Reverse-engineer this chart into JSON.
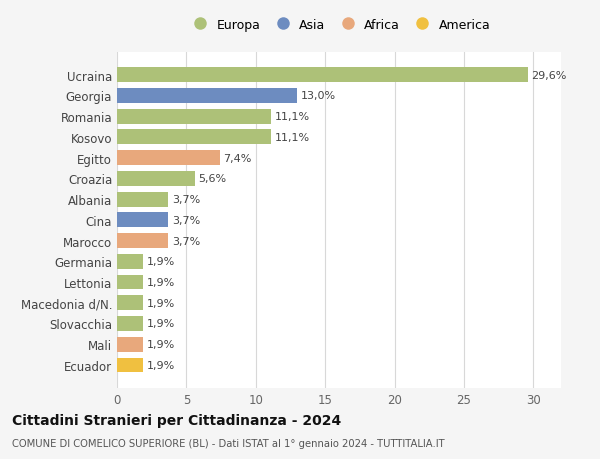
{
  "countries": [
    "Ucraina",
    "Georgia",
    "Romania",
    "Kosovo",
    "Egitto",
    "Croazia",
    "Albania",
    "Cina",
    "Marocco",
    "Germania",
    "Lettonia",
    "Macedonia d/N.",
    "Slovacchia",
    "Mali",
    "Ecuador"
  ],
  "values": [
    29.6,
    13.0,
    11.1,
    11.1,
    7.4,
    5.6,
    3.7,
    3.7,
    3.7,
    1.9,
    1.9,
    1.9,
    1.9,
    1.9,
    1.9
  ],
  "labels": [
    "29,6%",
    "13,0%",
    "11,1%",
    "11,1%",
    "7,4%",
    "5,6%",
    "3,7%",
    "3,7%",
    "3,7%",
    "1,9%",
    "1,9%",
    "1,9%",
    "1,9%",
    "1,9%",
    "1,9%"
  ],
  "continent": [
    "Europa",
    "Asia",
    "Europa",
    "Europa",
    "Africa",
    "Europa",
    "Europa",
    "Asia",
    "Africa",
    "Europa",
    "Europa",
    "Europa",
    "Europa",
    "Africa",
    "America"
  ],
  "colors": {
    "Europa": "#adc178",
    "Asia": "#6d8cc0",
    "Africa": "#e8a87c",
    "America": "#f0c040"
  },
  "legend_order": [
    "Europa",
    "Asia",
    "Africa",
    "America"
  ],
  "xlim": [
    0,
    32
  ],
  "xticks": [
    0,
    5,
    10,
    15,
    20,
    25,
    30
  ],
  "title": "Cittadini Stranieri per Cittadinanza - 2024",
  "subtitle": "COMUNE DI COMELICO SUPERIORE (BL) - Dati ISTAT al 1° gennaio 2024 - TUTTITALIA.IT",
  "background_color": "#f5f5f5",
  "bar_background": "#ffffff",
  "grid_color": "#d8d8d8"
}
